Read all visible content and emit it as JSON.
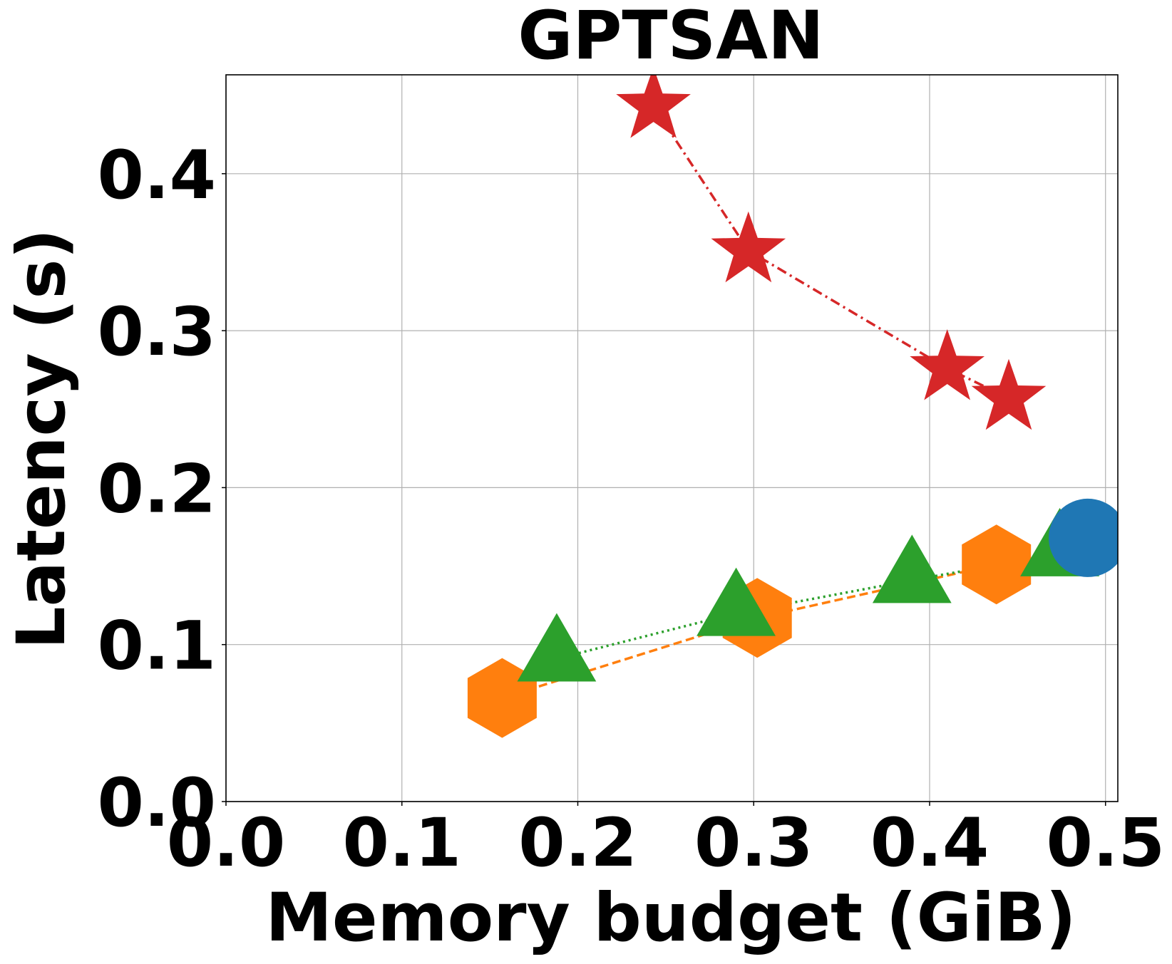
{
  "chart_data": {
    "type": "scatter",
    "title": "GPTSAN",
    "xlabel": "Memory budget (GiB)",
    "ylabel": "Latency (s)",
    "xlim": [
      0.0,
      0.507
    ],
    "ylim": [
      0.0,
      0.463
    ],
    "xticks": [
      "0.0",
      "0.1",
      "0.2",
      "0.3",
      "0.4",
      "0.5"
    ],
    "yticks": [
      "0.0",
      "0.1",
      "0.2",
      "0.3",
      "0.4"
    ],
    "grid": true,
    "series": [
      {
        "color": "#d62728",
        "marker": "star",
        "line": "dashdot",
        "x": [
          0.243,
          0.297,
          0.41,
          0.445
        ],
        "y": [
          0.443,
          0.351,
          0.276,
          0.257
        ]
      },
      {
        "color": "#ff7f0e",
        "marker": "hexagon",
        "line": "dashed",
        "x": [
          0.157,
          0.302,
          0.438
        ],
        "y": [
          0.066,
          0.117,
          0.151
        ]
      },
      {
        "color": "#2ca02c",
        "marker": "triangle",
        "line": "dotted",
        "x": [
          0.188,
          0.29,
          0.39,
          0.474
        ],
        "y": [
          0.091,
          0.12,
          0.141,
          0.158
        ]
      },
      {
        "color": "#1f77b4",
        "marker": "circle",
        "line": "none",
        "x": [
          0.49
        ],
        "y": [
          0.168
        ]
      }
    ]
  }
}
